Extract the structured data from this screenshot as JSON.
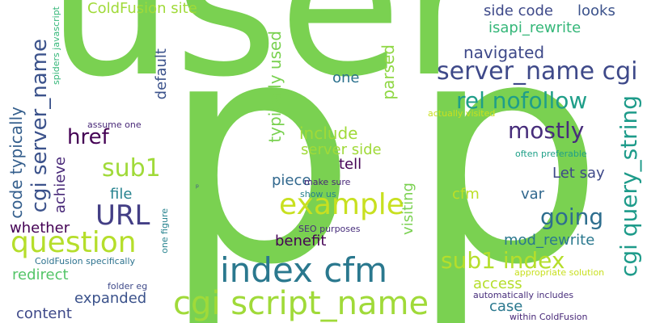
{
  "words": [
    {
      "text": "user",
      "color": "#7ad151"
    },
    {
      "text": "p",
      "color": "#7ad151"
    },
    {
      "text": "p",
      "color": "#7ad151"
    },
    {
      "text": "index cfm",
      "color": "#2a788e"
    },
    {
      "text": "cgi script_name",
      "color": "#a0da39"
    },
    {
      "text": "question",
      "color": "#b5de2b"
    },
    {
      "text": "example",
      "color": "#c8e020"
    },
    {
      "text": "URL",
      "color": "#433e85"
    },
    {
      "text": "server_name cgi",
      "color": "#3e4989"
    },
    {
      "text": "rel nofollow",
      "color": "#1f9e89"
    },
    {
      "text": "mostly",
      "color": "#472d7b"
    },
    {
      "text": "cgi query_string",
      "color": "#1e9b8a"
    },
    {
      "text": "going",
      "color": "#2e6e8e"
    },
    {
      "text": "sub1 index",
      "color": "#b5de2b"
    },
    {
      "text": "cgi server_name",
      "color": "#3b528b"
    },
    {
      "text": "sub1",
      "color": "#a0da39"
    },
    {
      "text": "href",
      "color": "#440154"
    },
    {
      "text": "ColdFusion site",
      "color": "#a0da39"
    },
    {
      "text": "typically used",
      "color": "#7ad151"
    },
    {
      "text": "code typically",
      "color": "#355f8d"
    },
    {
      "text": "default",
      "color": "#3b528b"
    },
    {
      "text": "parsed",
      "color": "#8fd744"
    },
    {
      "text": "navigated",
      "color": "#3e4989"
    },
    {
      "text": "side code",
      "color": "#3e4989"
    },
    {
      "text": "looks",
      "color": "#3b528b"
    },
    {
      "text": "isapi_rewrite",
      "color": "#35b779"
    },
    {
      "text": "one",
      "color": "#2c728e"
    },
    {
      "text": "include",
      "color": "#a0da39"
    },
    {
      "text": "server side",
      "color": "#a0da39"
    },
    {
      "text": "tell",
      "color": "#440154"
    },
    {
      "text": "piece",
      "color": "#31688e"
    },
    {
      "text": "file",
      "color": "#26828e"
    },
    {
      "text": "cfm",
      "color": "#bddf26"
    },
    {
      "text": "var",
      "color": "#31688e"
    },
    {
      "text": "Let say",
      "color": "#3e4989"
    },
    {
      "text": "achieve",
      "color": "#482878"
    },
    {
      "text": "whether",
      "color": "#440154"
    },
    {
      "text": "benefit",
      "color": "#440154"
    },
    {
      "text": "mod_rewrite",
      "color": "#2a788e"
    },
    {
      "text": "redirect",
      "color": "#54c568"
    },
    {
      "text": "expanded",
      "color": "#3b528b"
    },
    {
      "text": "access",
      "color": "#b5de2b"
    },
    {
      "text": "case",
      "color": "#2a788e"
    },
    {
      "text": "content",
      "color": "#3e4989"
    },
    {
      "text": "visiting",
      "color": "#7ad151"
    },
    {
      "text": "assume one",
      "color": "#482878"
    },
    {
      "text": "spiders javascript",
      "color": "#35b779"
    },
    {
      "text": "actually visited",
      "color": "#c8e020"
    },
    {
      "text": "often preferable",
      "color": "#1fa088"
    },
    {
      "text": "make sure",
      "color": "#482878"
    },
    {
      "text": "show us",
      "color": "#26828e"
    },
    {
      "text": "SEO purposes",
      "color": "#472d7b"
    },
    {
      "text": "one figure",
      "color": "#26828e"
    },
    {
      "text": "ColdFusion specifically",
      "color": "#2c728e"
    },
    {
      "text": "folder eg",
      "color": "#3e4989"
    },
    {
      "text": "appropriate solution",
      "color": "#c8e020"
    },
    {
      "text": "automatically includes",
      "color": "#472d7b"
    },
    {
      "text": "within ColdFusion",
      "color": "#482878"
    },
    {
      "text": "p",
      "color": "#3b528b"
    }
  ]
}
